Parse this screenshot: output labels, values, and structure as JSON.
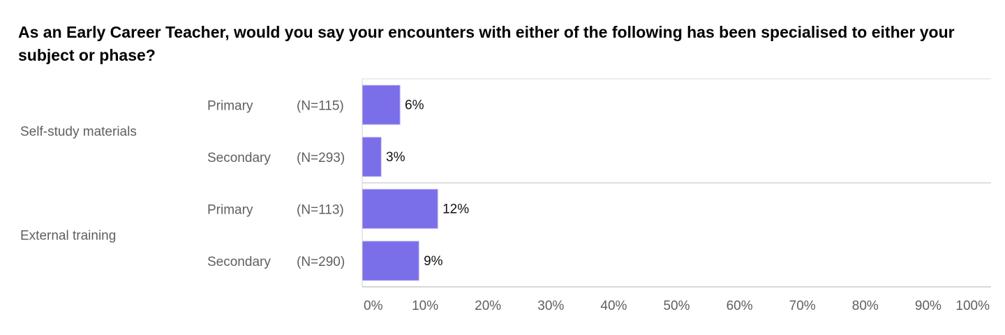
{
  "chart_data": {
    "type": "bar",
    "orientation": "horizontal",
    "title": "As an Early Career Teacher, would you say your encounters with either of the following has been specialised to either your subject or phase?",
    "xlim": [
      0,
      100
    ],
    "x_ticks": [
      "0%",
      "10%",
      "20%",
      "30%",
      "40%",
      "50%",
      "60%",
      "70%",
      "80%",
      "90%",
      "100%"
    ],
    "bar_color": "#7b6ee9",
    "groups": [
      {
        "label": "Self-study materials",
        "rows": [
          {
            "phase": "Primary",
            "n": "(N=115)",
            "value": 6,
            "value_label": "6%"
          },
          {
            "phase": "Secondary",
            "n": "(N=293)",
            "value": 3,
            "value_label": "3%"
          }
        ]
      },
      {
        "label": "External training",
        "rows": [
          {
            "phase": "Primary",
            "n": "(N=113)",
            "value": 12,
            "value_label": "12%"
          },
          {
            "phase": "Secondary",
            "n": "(N=290)",
            "value": 9,
            "value_label": "9%"
          }
        ]
      }
    ]
  }
}
